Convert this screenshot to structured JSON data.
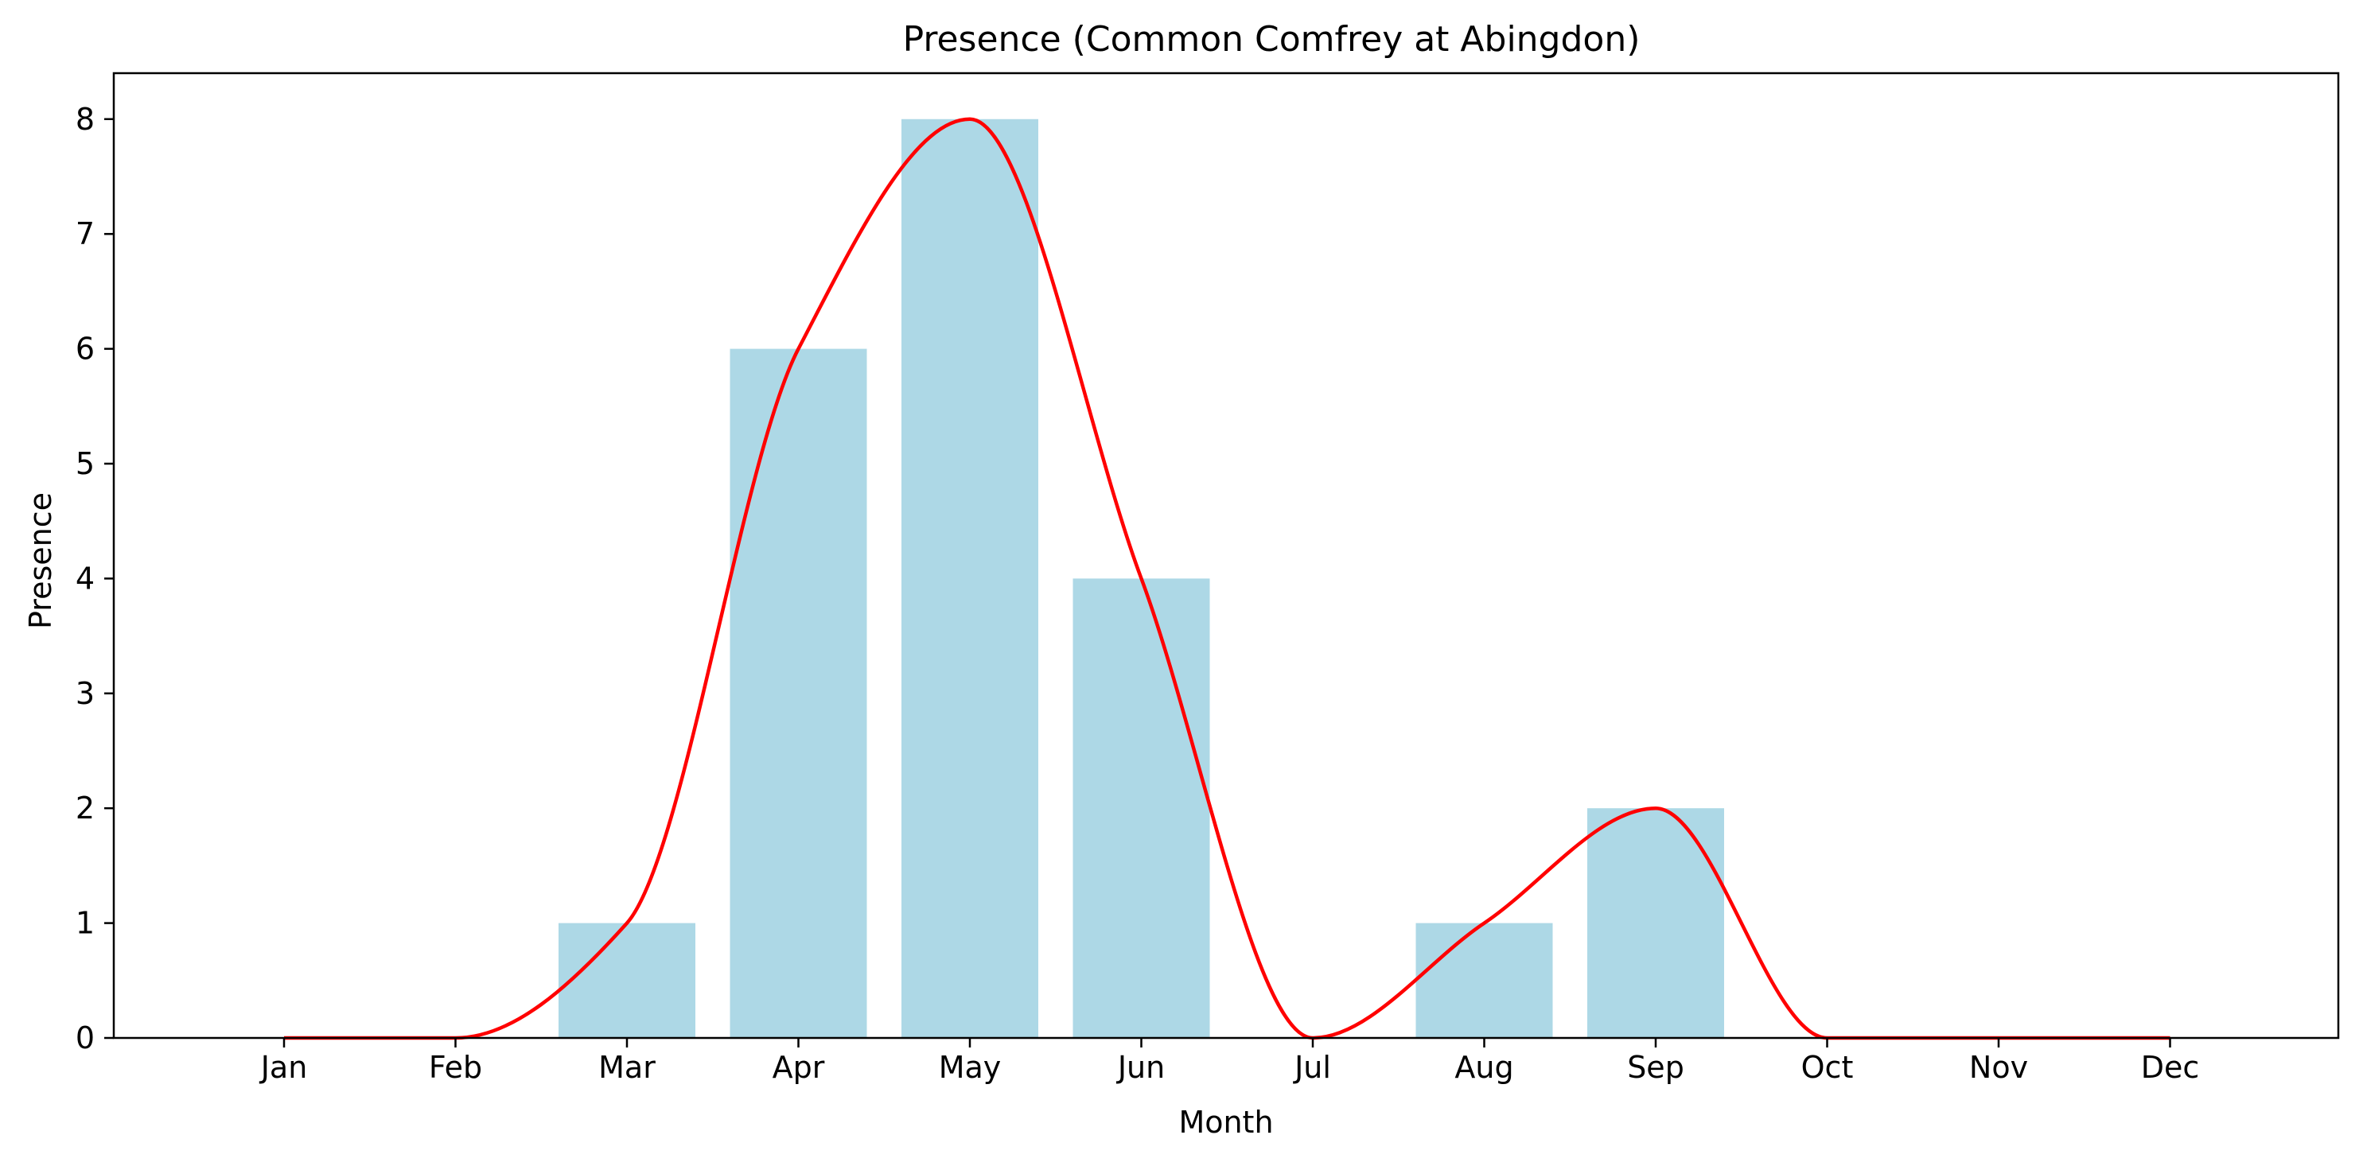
{
  "chart_data": {
    "type": "bar",
    "title": "Presence (Common Comfrey at Abingdon)",
    "xlabel": "Month",
    "ylabel": "Presence",
    "categories": [
      "Jan",
      "Feb",
      "Mar",
      "Apr",
      "May",
      "Jun",
      "Jul",
      "Aug",
      "Sep",
      "Oct",
      "Nov",
      "Dec"
    ],
    "series": [
      {
        "type": "bar",
        "values": [
          0,
          0,
          1,
          6,
          8,
          4,
          0,
          1,
          2,
          0,
          0,
          0
        ]
      },
      {
        "type": "line",
        "smooth": true,
        "values": [
          0,
          0,
          1,
          6,
          8,
          4,
          0,
          1,
          2,
          0,
          0,
          0
        ]
      }
    ],
    "ylim": [
      0,
      8.4
    ],
    "yticks": [
      0,
      1,
      2,
      3,
      4,
      5,
      6,
      7,
      8
    ],
    "grid": false,
    "colors": {
      "bar": "#add8e6",
      "line": "#ff0000"
    }
  }
}
